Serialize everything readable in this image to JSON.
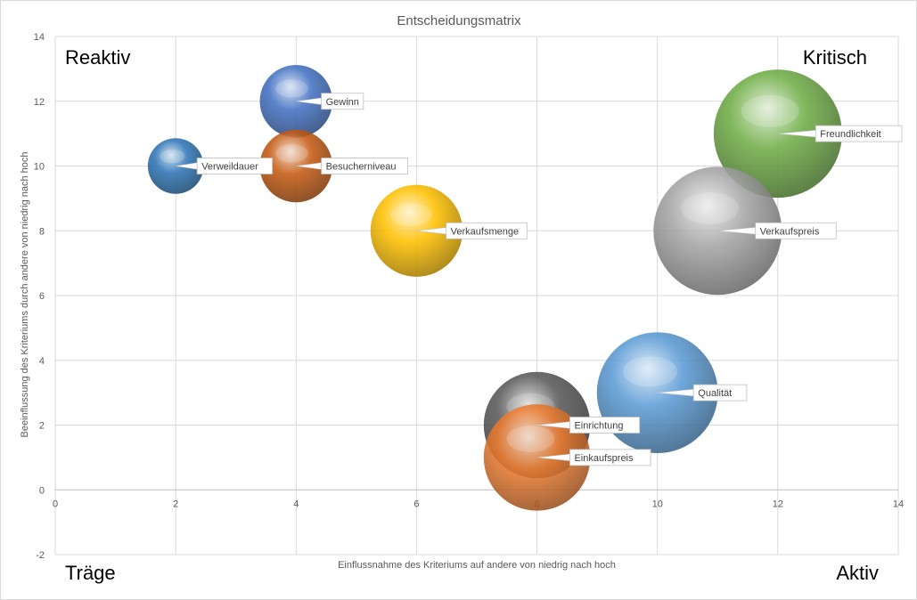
{
  "chart_data": {
    "type": "bubble",
    "title": "Entscheidungsmatrix",
    "xlabel": "Einflussnahme des Kriteriums auf andere von niedrig nach hoch",
    "ylabel": "Beeinflussung des Kriteriums durch andere von niedrig nach hoch",
    "xlim": [
      0,
      14
    ],
    "ylim": [
      -2,
      14
    ],
    "x_ticks": [
      "0",
      "2",
      "4",
      "6",
      "8",
      "10",
      "12",
      "14"
    ],
    "y_ticks": [
      "-2",
      "0",
      "2",
      "4",
      "6",
      "8",
      "10",
      "12",
      "14"
    ],
    "grid": true,
    "quadrant_labels": {
      "top_left": "Reaktiv",
      "top_right": "Kritisch",
      "bottom_left": "Träge",
      "bottom_right": "Aktiv"
    },
    "points": [
      {
        "label": "Gewinn",
        "x": 4,
        "y": 12,
        "size": 0.3,
        "color": "#4472c4"
      },
      {
        "label": "Verweildauer",
        "x": 2,
        "y": 10,
        "size": 0.23,
        "color": "#2e75b6"
      },
      {
        "label": "Besucherniveau",
        "x": 4,
        "y": 10,
        "size": 0.3,
        "color": "#c55a11"
      },
      {
        "label": "Verkaufsmenge",
        "x": 6,
        "y": 8,
        "size": 0.38,
        "color": "#ffc000"
      },
      {
        "label": "Freundlichkeit",
        "x": 12,
        "y": 11,
        "size": 0.53,
        "color": "#70ad47"
      },
      {
        "label": "Verkaufspreis",
        "x": 11,
        "y": 8,
        "size": 0.53,
        "color": "#a5a5a5"
      },
      {
        "label": "Qualität",
        "x": 10,
        "y": 3,
        "size": 0.5,
        "color": "#5b9bd5"
      },
      {
        "label": "Einrichtung",
        "x": 8,
        "y": 2,
        "size": 0.44,
        "color": "#595959"
      },
      {
        "label": "Einkaufspreis",
        "x": 8,
        "y": 1,
        "size": 0.44,
        "color": "#ed7d31"
      }
    ]
  }
}
